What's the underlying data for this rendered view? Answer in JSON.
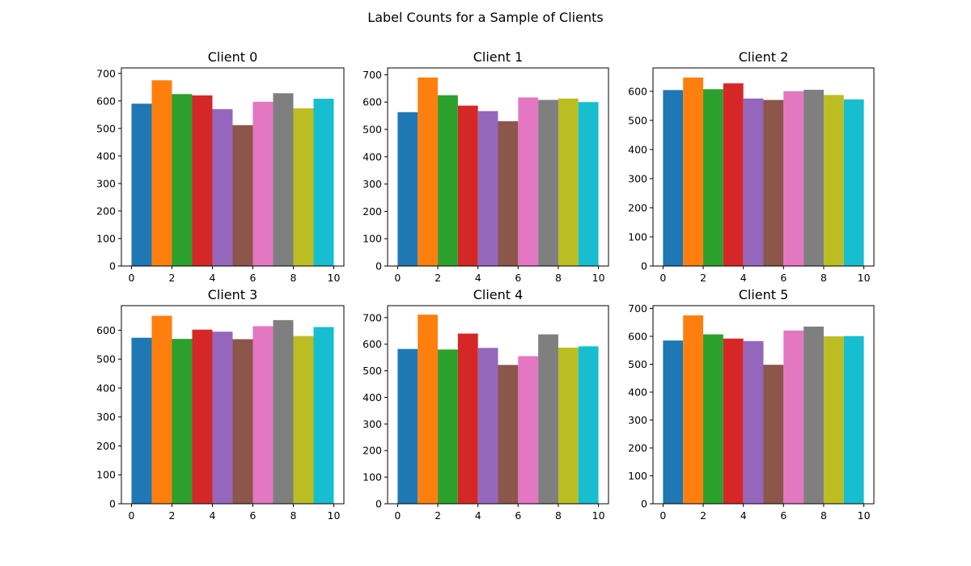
{
  "figure": {
    "title": "Label Counts for a Sample of Clients"
  },
  "colors": [
    "#1f77b4",
    "#ff7f0e",
    "#2ca02c",
    "#d62728",
    "#9467bd",
    "#8c564b",
    "#e377c2",
    "#7f7f7f",
    "#bcbd22",
    "#17becf"
  ],
  "chart_data": [
    {
      "type": "bar",
      "title": "Client 0",
      "x": [
        0,
        1,
        2,
        3,
        4,
        5,
        6,
        7,
        8,
        9
      ],
      "values": [
        590,
        675,
        625,
        620,
        570,
        512,
        597,
        628,
        573,
        608
      ],
      "xlim": [
        -0.5,
        10.5
      ],
      "ylim": [
        0,
        720
      ],
      "xticks": [
        0,
        2,
        4,
        6,
        8,
        10
      ],
      "yticks": [
        0,
        100,
        200,
        300,
        400,
        500,
        600,
        700
      ]
    },
    {
      "type": "bar",
      "title": "Client 1",
      "x": [
        0,
        1,
        2,
        3,
        4,
        5,
        6,
        7,
        8,
        9
      ],
      "values": [
        563,
        690,
        625,
        587,
        567,
        530,
        617,
        608,
        613,
        600
      ],
      "xlim": [
        -0.5,
        10.5
      ],
      "ylim": [
        0,
        725
      ],
      "xticks": [
        0,
        2,
        4,
        6,
        8,
        10
      ],
      "yticks": [
        0,
        100,
        200,
        300,
        400,
        500,
        600,
        700
      ]
    },
    {
      "type": "bar",
      "title": "Client 2",
      "x": [
        0,
        1,
        2,
        3,
        4,
        5,
        6,
        7,
        8,
        9
      ],
      "values": [
        604,
        647,
        607,
        627,
        575,
        570,
        600,
        605,
        587,
        572
      ],
      "xlim": [
        -0.5,
        10.5
      ],
      "ylim": [
        0,
        680
      ],
      "xticks": [
        0,
        2,
        4,
        6,
        8,
        10
      ],
      "yticks": [
        0,
        100,
        200,
        300,
        400,
        500,
        600
      ]
    },
    {
      "type": "bar",
      "title": "Client 3",
      "x": [
        0,
        1,
        2,
        3,
        4,
        5,
        6,
        7,
        8,
        9
      ],
      "values": [
        574,
        650,
        570,
        602,
        595,
        569,
        614,
        635,
        580,
        611
      ],
      "xlim": [
        -0.5,
        10.5
      ],
      "ylim": [
        0,
        685
      ],
      "xticks": [
        0,
        2,
        4,
        6,
        8,
        10
      ],
      "yticks": [
        0,
        100,
        200,
        300,
        400,
        500,
        600
      ]
    },
    {
      "type": "bar",
      "title": "Client 4",
      "x": [
        0,
        1,
        2,
        3,
        4,
        5,
        6,
        7,
        8,
        9
      ],
      "values": [
        582,
        711,
        580,
        640,
        586,
        522,
        555,
        637,
        587,
        592
      ],
      "xlim": [
        -0.5,
        10.5
      ],
      "ylim": [
        0,
        745
      ],
      "xticks": [
        0,
        2,
        4,
        6,
        8,
        10
      ],
      "yticks": [
        0,
        100,
        200,
        300,
        400,
        500,
        600,
        700
      ]
    },
    {
      "type": "bar",
      "title": "Client 5",
      "x": [
        0,
        1,
        2,
        3,
        4,
        5,
        6,
        7,
        8,
        9
      ],
      "values": [
        585,
        675,
        607,
        592,
        583,
        498,
        621,
        635,
        600,
        601
      ],
      "xlim": [
        -0.5,
        10.5
      ],
      "ylim": [
        0,
        710
      ],
      "xticks": [
        0,
        2,
        4,
        6,
        8,
        10
      ],
      "yticks": [
        0,
        100,
        200,
        300,
        400,
        500,
        600,
        700
      ]
    }
  ]
}
